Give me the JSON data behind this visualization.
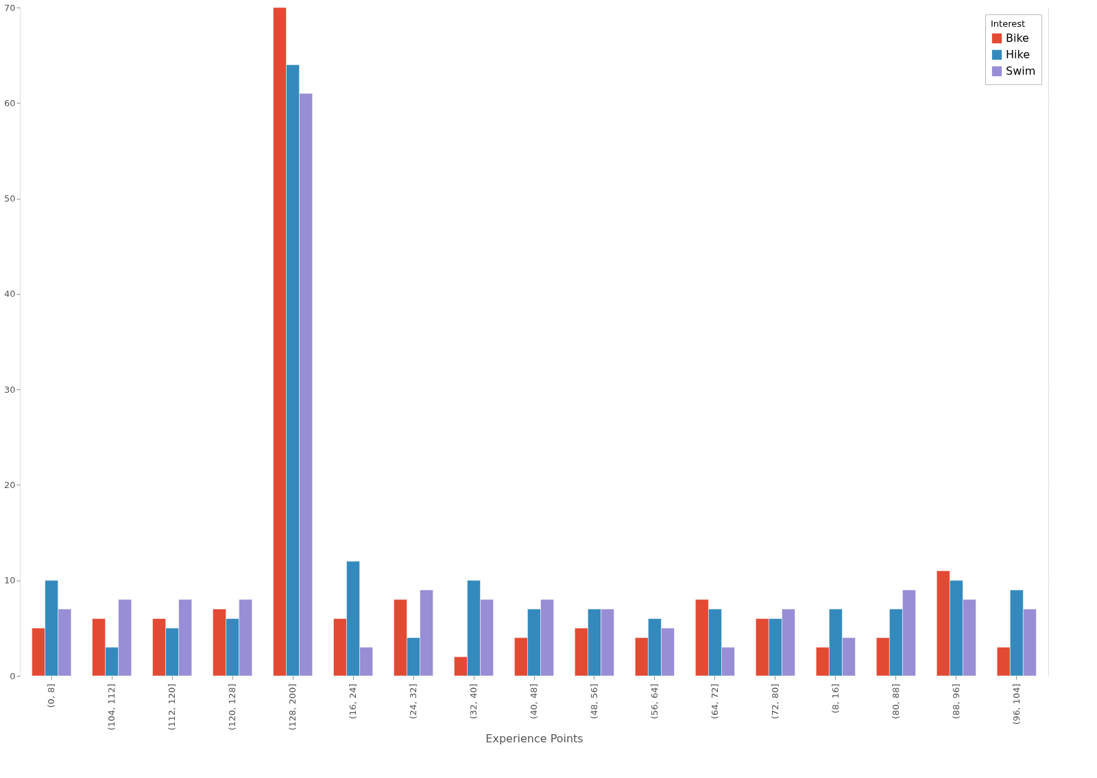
{
  "chart_data": {
    "type": "bar",
    "xlabel": "Experience Points",
    "legend_title": "Interest",
    "categories": [
      "(0, 8]",
      "(104, 112]",
      "(112, 120]",
      "(120, 128]",
      "(128, 200]",
      "(16, 24]",
      "(24, 32]",
      "(32, 40]",
      "(40, 48]",
      "(48, 56]",
      "(56, 64]",
      "(64, 72]",
      "(72, 80]",
      "(8, 16]",
      "(80, 88]",
      "(88, 96]",
      "(96, 104]"
    ],
    "series": [
      {
        "name": "Bike",
        "color": "#e24a33",
        "values": [
          5,
          6,
          6,
          7,
          70,
          6,
          8,
          2,
          4,
          5,
          4,
          8,
          6,
          3,
          4,
          11,
          3
        ]
      },
      {
        "name": "Hike",
        "color": "#348abd",
        "values": [
          10,
          3,
          5,
          6,
          64,
          12,
          4,
          10,
          7,
          7,
          6,
          7,
          6,
          7,
          7,
          10,
          9
        ]
      },
      {
        "name": "Swim",
        "color": "#988ed5",
        "values": [
          7,
          8,
          8,
          8,
          61,
          3,
          9,
          8,
          8,
          7,
          5,
          3,
          7,
          4,
          9,
          8,
          7
        ]
      }
    ],
    "ylim": [
      0,
      70
    ],
    "yticks": [
      0,
      10,
      20,
      30,
      40,
      50,
      60,
      70
    ],
    "grid": true,
    "legend": "top right"
  }
}
